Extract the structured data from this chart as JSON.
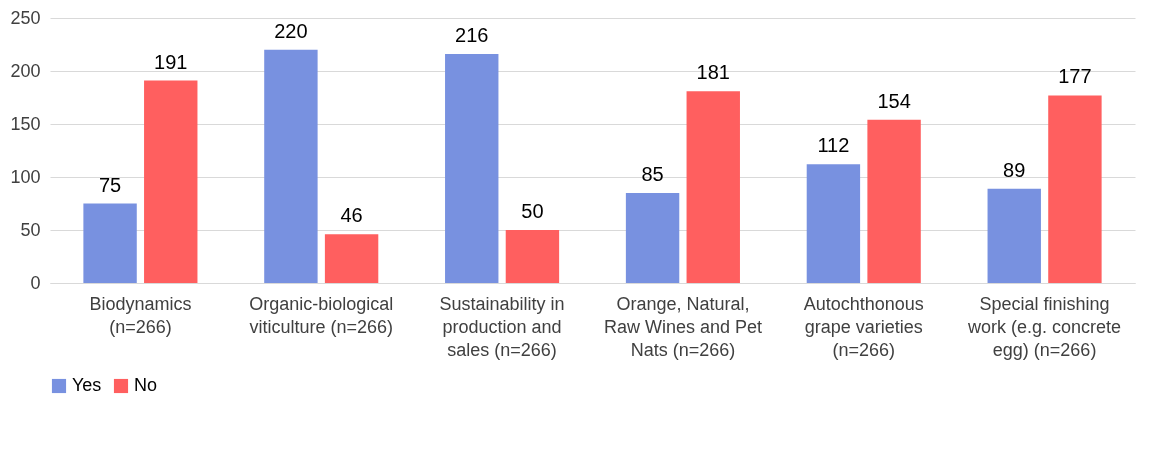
{
  "chart_data": {
    "type": "bar",
    "categories": [
      "Biodynamics (n=266)",
      "Organic-biological viticulture (n=266)",
      "Sustainability in production and sales (n=266)",
      "Orange, Natural, Raw Wines and Pet Nats (n=266)",
      "Autochthonous grape varieties (n=266)",
      "Special finishing work (e.g. concrete egg) (n=266)"
    ],
    "series": [
      {
        "name": "Yes",
        "color": "#7891e0",
        "values": [
          75,
          220,
          216,
          85,
          112,
          89
        ]
      },
      {
        "name": "No",
        "color": "#ff5f5f",
        "values": [
          191,
          46,
          50,
          181,
          154,
          177
        ]
      }
    ],
    "ylim": [
      0,
      250
    ],
    "yticks": [
      0,
      50,
      100,
      150,
      200,
      250
    ],
    "grid": "y",
    "legend": "bottom",
    "data_labels": true
  }
}
